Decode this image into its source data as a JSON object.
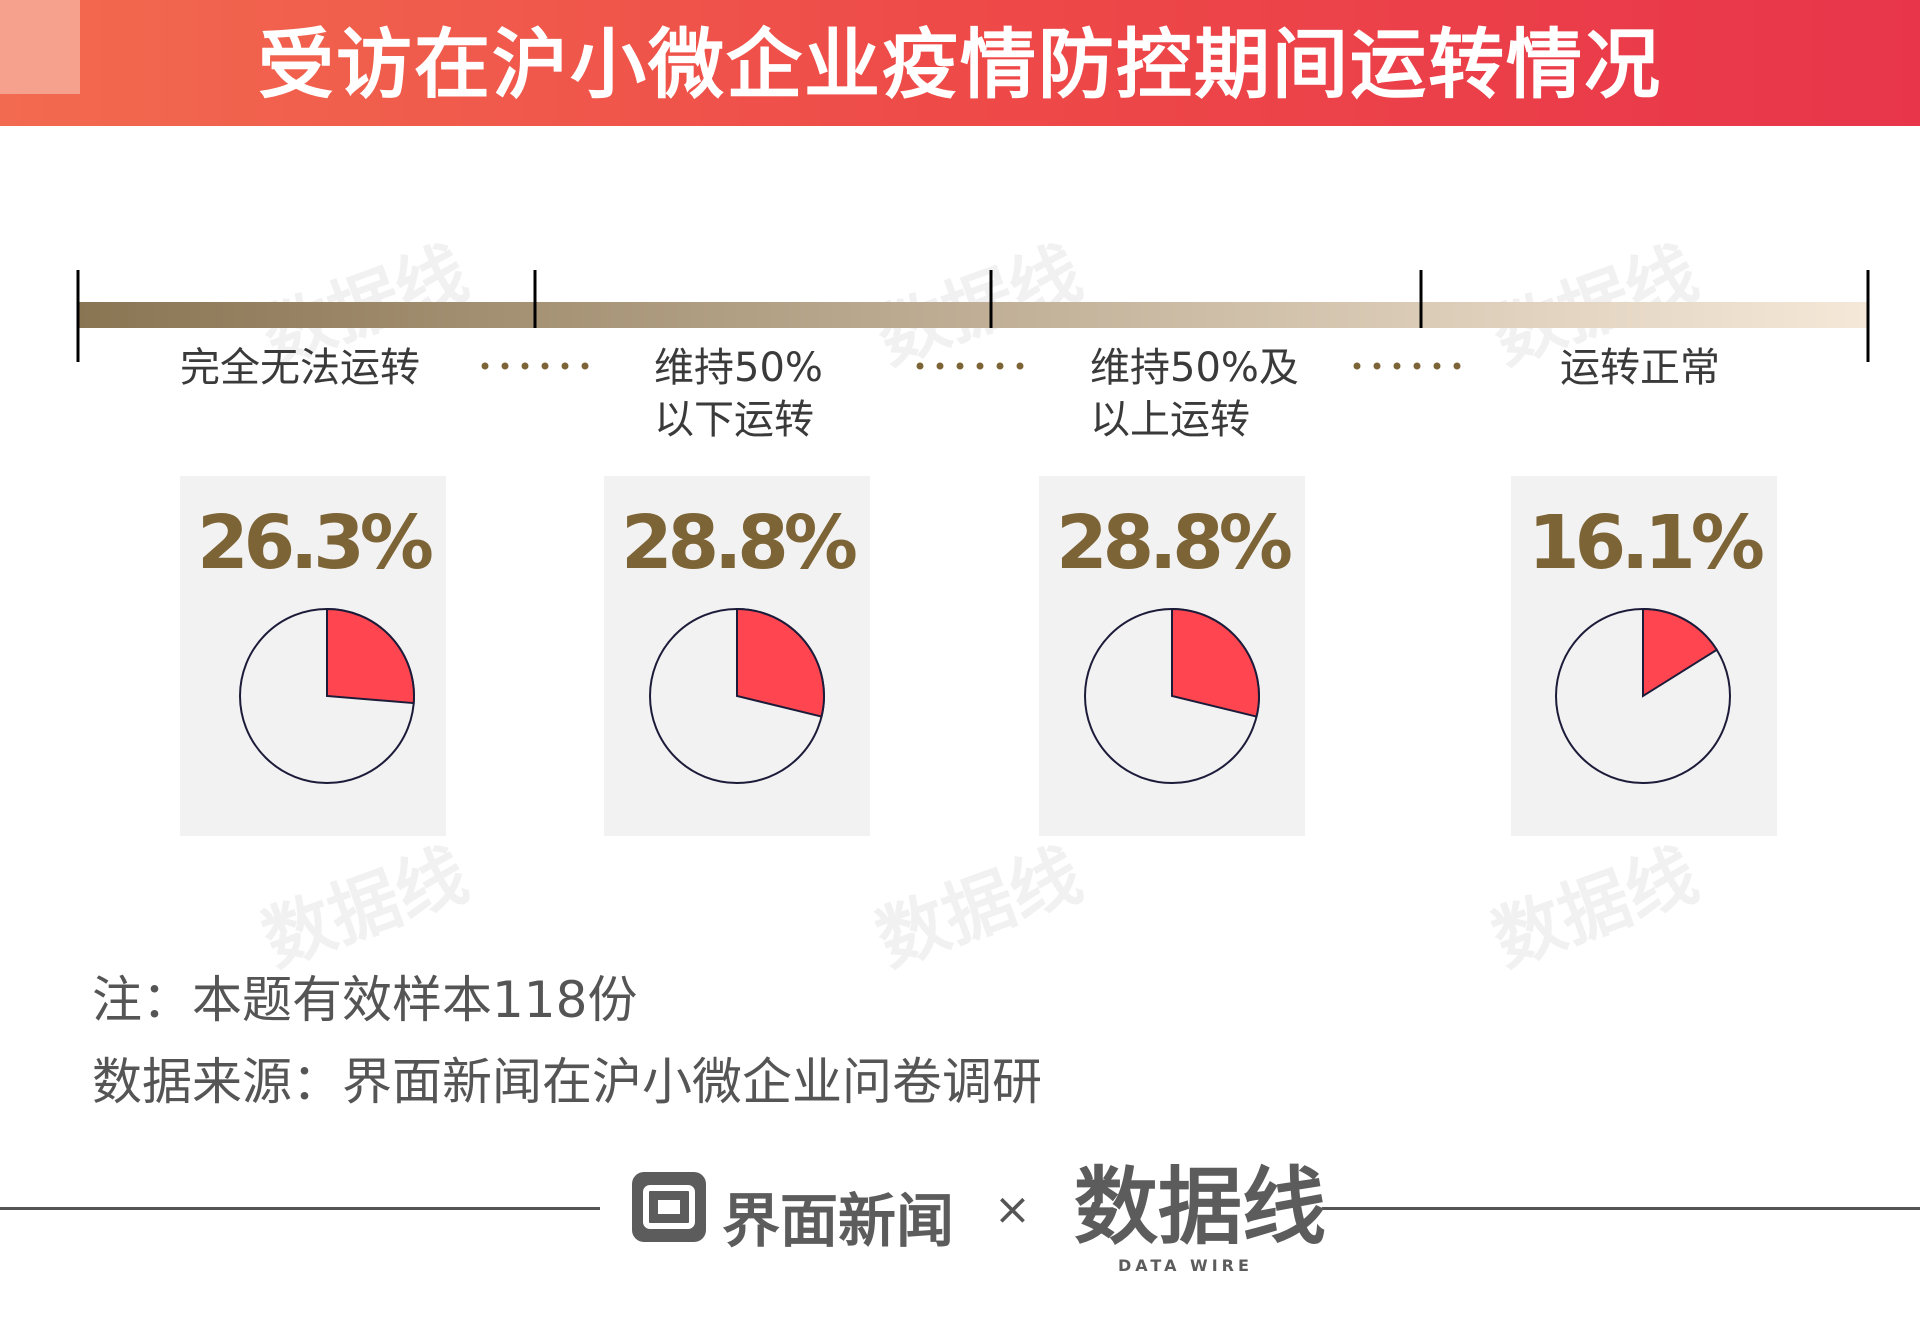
{
  "header": {
    "title": "受访在沪小微企业疫情防控期间运转情况"
  },
  "chart_data": {
    "type": "pie",
    "title": "受访在沪小微企业疫情防控期间运转情况",
    "categories": [
      "完全无法运转",
      "维持50%以下运转",
      "维持50%及以上运转",
      "运转正常"
    ],
    "scale_labels": [
      [
        "完全无法运转"
      ],
      [
        "维持50%",
        "以下运转"
      ],
      [
        "维持50%及",
        "以上运转"
      ],
      [
        "运转正常"
      ]
    ],
    "values": [
      26.3,
      28.8,
      28.8,
      16.1
    ],
    "value_labels": [
      "26.3%",
      "28.8%",
      "28.8%",
      "16.1%"
    ],
    "unit": "%"
  },
  "colors": {
    "header_start": "#f26a4f",
    "header_end": "#e8354a",
    "slice": "#ff4650",
    "value_text": "#7d6436",
    "scale_bar_start": "#8a7553",
    "scale_bar_end": "#f5e8d8"
  },
  "notes": {
    "sample": "注：本题有效样本118份",
    "source": "数据来源：界面新闻在沪小微企业问卷调研"
  },
  "footer": {
    "logo1_text": "界面新闻",
    "separator": "×",
    "logo2_text": "数据线",
    "logo2_sub": "DATA WIRE"
  },
  "watermark": {
    "text": "数据线"
  }
}
